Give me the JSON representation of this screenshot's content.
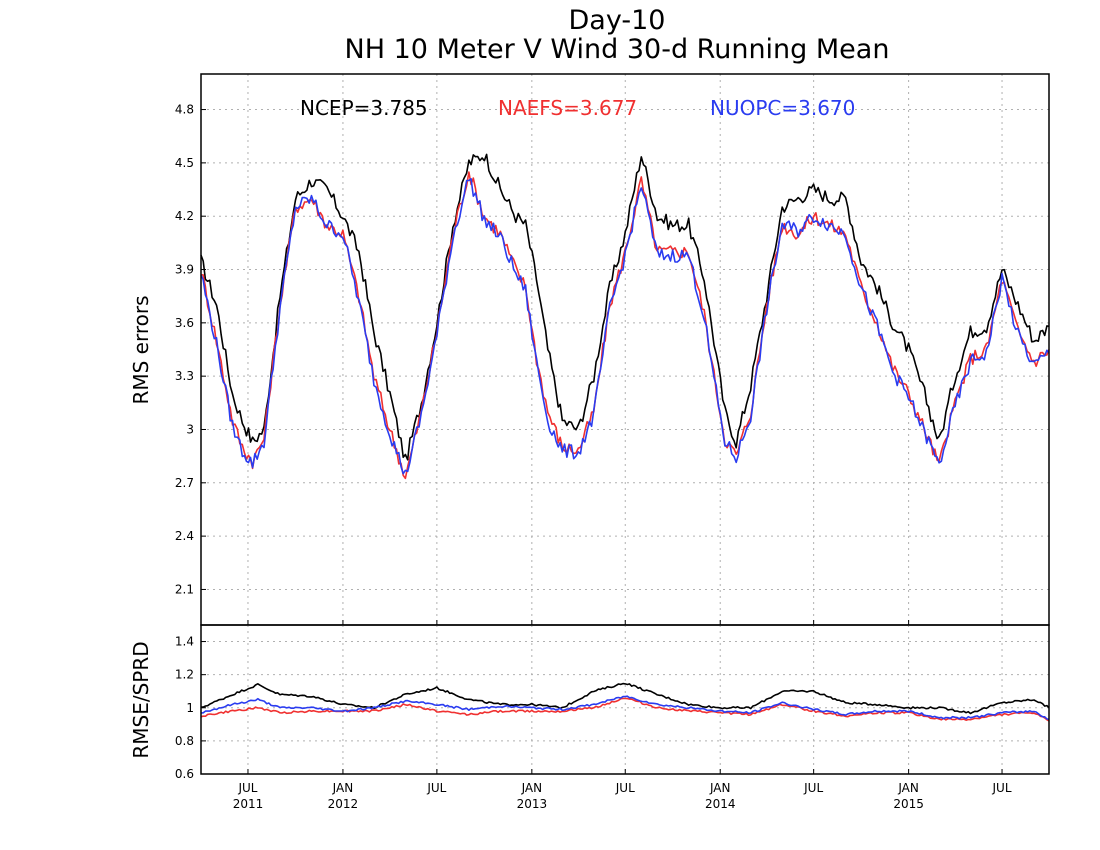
{
  "title": {
    "line1": "Day-10",
    "line2": "NH 10 Meter V Wind 30-d Running Mean"
  },
  "legend": {
    "ncep": "NCEP=3.785",
    "naefs": "NAEFS=3.677",
    "nuopc": "NUOPC=3.670"
  },
  "colors": {
    "ncep": "#000000",
    "naefs": "#f03030",
    "nuopc": "#2a3cf0"
  },
  "x_ticks": [
    {
      "month": "JUL",
      "year": "2011",
      "date": "2011-07-01"
    },
    {
      "month": "JAN",
      "year": "2012",
      "date": "2012-01-01"
    },
    {
      "month": "JUL",
      "year": "",
      "date": "2012-07-01"
    },
    {
      "month": "JAN",
      "year": "2013",
      "date": "2013-01-01"
    },
    {
      "month": "JUL",
      "year": "",
      "date": "2013-07-01"
    },
    {
      "month": "JAN",
      "year": "2014",
      "date": "2014-01-01"
    },
    {
      "month": "JUL",
      "year": "",
      "date": "2014-07-01"
    },
    {
      "month": "JAN",
      "year": "2015",
      "date": "2015-01-01"
    },
    {
      "month": "JUL",
      "year": "",
      "date": "2015-07-01"
    }
  ],
  "chart_data": [
    {
      "type": "line",
      "ylabel": "RMS errors",
      "ylim": [
        1.9,
        5.0
      ],
      "yticks": [
        "2.1",
        "2.4",
        "2.7",
        "3",
        "3.3",
        "3.6",
        "3.9",
        "4.2",
        "4.5",
        "4.8"
      ],
      "xlim": [
        "2011-04-01",
        "2015-09-30"
      ],
      "grid": true,
      "legend_position": "top",
      "x": [
        "2011-04-01",
        "2011-05-01",
        "2011-06-01",
        "2011-06-20",
        "2011-07-10",
        "2011-08-01",
        "2011-09-01",
        "2011-10-01",
        "2011-11-01",
        "2011-12-01",
        "2012-01-01",
        "2012-02-01",
        "2012-03-01",
        "2012-04-01",
        "2012-05-01",
        "2012-06-01",
        "2012-07-01",
        "2012-07-15",
        "2012-08-01",
        "2012-09-01",
        "2012-10-01",
        "2012-11-01",
        "2012-12-01",
        "2012-12-20",
        "2013-01-10",
        "2013-02-01",
        "2013-03-01",
        "2013-04-01",
        "2013-05-01",
        "2013-06-01",
        "2013-07-01",
        "2013-08-01",
        "2013-09-01",
        "2013-10-01",
        "2013-11-01",
        "2013-12-01",
        "2013-12-20",
        "2014-01-10",
        "2014-02-01",
        "2014-03-01",
        "2014-04-01",
        "2014-05-01",
        "2014-06-01",
        "2014-07-01",
        "2014-08-01",
        "2014-09-01",
        "2014-10-01",
        "2014-11-01",
        "2014-12-01",
        "2015-01-01",
        "2015-02-01",
        "2015-03-01",
        "2015-04-01",
        "2015-05-01",
        "2015-06-01",
        "2015-07-01",
        "2015-08-01",
        "2015-09-01",
        "2015-09-30"
      ],
      "series": [
        {
          "name": "NCEP",
          "color": "#000000",
          "values": [
            3.95,
            3.7,
            3.2,
            3.05,
            2.93,
            3.0,
            3.75,
            4.3,
            4.4,
            4.35,
            4.2,
            4.0,
            3.55,
            3.2,
            2.82,
            3.15,
            3.6,
            3.85,
            4.15,
            4.5,
            4.55,
            4.35,
            4.2,
            4.15,
            3.85,
            3.45,
            3.05,
            3.0,
            3.3,
            3.8,
            4.1,
            4.55,
            4.2,
            4.15,
            4.15,
            3.85,
            3.5,
            3.1,
            2.93,
            3.25,
            3.75,
            4.25,
            4.3,
            4.35,
            4.3,
            4.3,
            3.95,
            3.8,
            3.6,
            3.45,
            3.2,
            2.93,
            3.3,
            3.55,
            3.58,
            3.9,
            3.7,
            3.5,
            3.58
          ]
        },
        {
          "name": "NAEFS",
          "color": "#f03030",
          "values": [
            3.9,
            3.5,
            3.05,
            2.9,
            2.82,
            2.95,
            3.7,
            4.25,
            4.3,
            4.15,
            4.1,
            3.75,
            3.3,
            3.0,
            2.73,
            3.1,
            3.55,
            3.8,
            4.1,
            4.45,
            4.2,
            4.1,
            3.9,
            3.8,
            3.4,
            3.1,
            2.9,
            2.88,
            3.1,
            3.7,
            4.0,
            4.4,
            4.0,
            4.0,
            4.0,
            3.65,
            3.3,
            2.95,
            2.85,
            3.1,
            3.7,
            4.15,
            4.1,
            4.2,
            4.15,
            4.1,
            3.8,
            3.6,
            3.35,
            3.2,
            3.0,
            2.8,
            3.15,
            3.4,
            3.45,
            3.85,
            3.55,
            3.38,
            3.45
          ]
        },
        {
          "name": "NUOPC",
          "color": "#2a3cf0",
          "values": [
            3.88,
            3.48,
            3.02,
            2.88,
            2.81,
            2.93,
            3.68,
            4.25,
            4.3,
            4.15,
            4.1,
            3.72,
            3.28,
            2.98,
            2.74,
            3.08,
            3.53,
            3.78,
            4.08,
            4.42,
            4.18,
            4.08,
            3.88,
            3.78,
            3.38,
            3.05,
            2.88,
            2.87,
            3.08,
            3.68,
            3.98,
            4.38,
            3.98,
            3.98,
            3.98,
            3.63,
            3.28,
            2.93,
            2.84,
            3.08,
            3.68,
            4.15,
            4.12,
            4.2,
            4.15,
            4.1,
            3.8,
            3.58,
            3.33,
            3.18,
            2.98,
            2.8,
            3.13,
            3.38,
            3.43,
            3.85,
            3.53,
            3.36,
            3.43
          ]
        }
      ]
    },
    {
      "type": "line",
      "ylabel": "RMSE/SPRD",
      "ylim": [
        0.6,
        1.5
      ],
      "yticks": [
        "0.6",
        "0.8",
        "1",
        "1.2",
        "1.4"
      ],
      "xlim": [
        "2011-04-01",
        "2015-09-30"
      ],
      "grid": true,
      "x": [
        "2011-04-01",
        "2011-06-01",
        "2011-07-20",
        "2011-09-01",
        "2011-11-01",
        "2012-01-01",
        "2012-03-01",
        "2012-05-01",
        "2012-07-01",
        "2012-09-01",
        "2012-11-01",
        "2013-01-01",
        "2013-03-01",
        "2013-05-01",
        "2013-07-01",
        "2013-09-01",
        "2013-11-01",
        "2014-01-01",
        "2014-03-01",
        "2014-05-01",
        "2014-07-01",
        "2014-09-01",
        "2014-11-01",
        "2015-01-01",
        "2015-03-01",
        "2015-05-01",
        "2015-07-01",
        "2015-09-01",
        "2015-09-30"
      ],
      "series": [
        {
          "name": "NCEP",
          "color": "#000000",
          "values": [
            1.0,
            1.08,
            1.14,
            1.08,
            1.07,
            1.02,
            1.0,
            1.08,
            1.12,
            1.05,
            1.02,
            1.02,
            1.0,
            1.1,
            1.15,
            1.08,
            1.02,
            1.0,
            1.0,
            1.1,
            1.1,
            1.03,
            1.02,
            1.0,
            1.0,
            0.97,
            1.03,
            1.05,
            1.0
          ]
        },
        {
          "name": "NAEFS",
          "color": "#f03030",
          "values": [
            0.95,
            0.98,
            1.0,
            0.97,
            0.98,
            0.98,
            0.98,
            1.02,
            0.98,
            0.96,
            0.98,
            0.98,
            0.98,
            1.0,
            1.06,
            1.0,
            0.98,
            0.97,
            0.96,
            1.02,
            0.98,
            0.95,
            0.97,
            0.97,
            0.93,
            0.93,
            0.96,
            0.97,
            0.92
          ]
        },
        {
          "name": "NUOPC",
          "color": "#2a3cf0",
          "values": [
            0.97,
            1.02,
            1.05,
            1.0,
            1.0,
            0.98,
            1.0,
            1.04,
            1.02,
            0.99,
            1.01,
            1.0,
            0.99,
            1.02,
            1.07,
            1.02,
            1.0,
            0.98,
            0.97,
            1.03,
            0.99,
            0.96,
            0.98,
            0.98,
            0.94,
            0.94,
            0.97,
            0.98,
            0.93
          ]
        }
      ]
    }
  ]
}
